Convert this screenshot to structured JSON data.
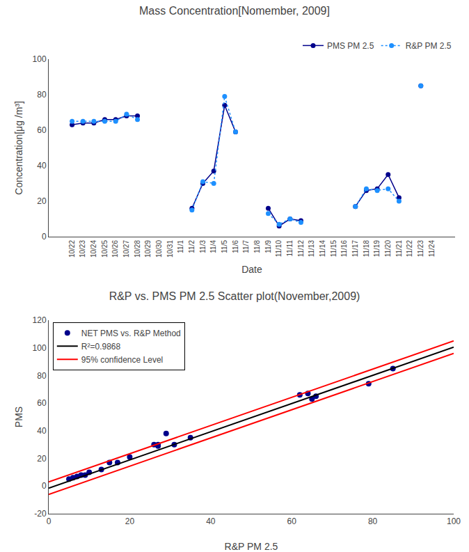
{
  "chart_data": [
    {
      "type": "line",
      "title": "Mass Concentration[Nomember, 2009]",
      "xlabel": "Date",
      "ylabel": "Concentration[μg /m³]",
      "categories": [
        "10/22",
        "10/23",
        "10/24",
        "10/25",
        "10/26",
        "10/27",
        "10/28",
        "10/29",
        "10/30",
        "10/31",
        "11/1",
        "11/2",
        "11/3",
        "11/4",
        "11/5",
        "11/6",
        "11/7",
        "11/8",
        "11/9",
        "11/10",
        "11/11",
        "11/12",
        "11/13",
        "11/14",
        "11/15",
        "11/16",
        "11/17",
        "11/18",
        "11/19",
        "11/20",
        "11/21",
        "11/22",
        "11/23",
        "11/24"
      ],
      "series": [
        {
          "name": "PMS PM 2.5",
          "color": "#00008B",
          "line_style": "solid",
          "marker": "circle",
          "values": [
            63,
            64,
            64,
            66,
            66,
            68,
            68,
            null,
            null,
            null,
            null,
            16,
            30,
            37,
            74,
            59,
            null,
            null,
            16,
            6,
            10,
            9,
            null,
            null,
            null,
            null,
            17,
            26,
            27,
            35,
            22,
            null,
            85,
            null
          ]
        },
        {
          "name": "R&P PM 2.5",
          "color": "#1E90FF",
          "line_style": "dotted",
          "marker": "circle",
          "values": [
            65,
            65,
            65,
            65,
            65,
            69,
            66,
            null,
            null,
            null,
            null,
            15,
            31,
            30,
            79,
            59,
            null,
            null,
            13,
            7,
            10,
            8,
            null,
            null,
            null,
            null,
            17,
            27,
            26,
            27,
            20,
            null,
            85,
            null
          ]
        }
      ],
      "ylim": [
        0,
        100
      ],
      "yticks": [
        0,
        20,
        40,
        60,
        80,
        100
      ],
      "grid": false,
      "legend": "upper right"
    },
    {
      "type": "scatter",
      "title": "R&P vs. PMS PM 2.5 Scatter plot(November,2009)",
      "xlabel": "R&P PM 2.5",
      "ylabel": "PMS",
      "series": [
        {
          "name": "NET PMS vs. R&P Method",
          "type": "scatter",
          "color": "#00008B",
          "marker": "circle",
          "x": [
            5,
            6,
            7,
            8,
            9,
            10,
            13,
            15,
            17,
            20,
            26,
            27,
            27,
            29,
            31,
            35,
            62,
            64,
            65,
            66,
            79,
            85
          ],
          "values": [
            5,
            6,
            7,
            8,
            8,
            10,
            12,
            17,
            17,
            21,
            30,
            30,
            29,
            38,
            30,
            35,
            66,
            67,
            63,
            65,
            74,
            85
          ]
        },
        {
          "name": "R²=0.9868",
          "type": "line",
          "color": "#000000",
          "line_style": "solid",
          "x": [
            0,
            100
          ],
          "values": [
            -1.5,
            100.5
          ]
        },
        {
          "name": "95% confidence Level",
          "type": "line",
          "color": "#FF0000",
          "line_style": "solid",
          "x": [
            0,
            100,
            null,
            0,
            100
          ],
          "values": [
            3,
            105,
            null,
            -6,
            96
          ]
        }
      ],
      "xlim": [
        0,
        100
      ],
      "xticks": [
        0,
        20,
        40,
        60,
        80,
        100
      ],
      "ylim": [
        -20,
        120
      ],
      "yticks": [
        -20,
        0,
        20,
        40,
        60,
        80,
        100,
        120
      ],
      "grid": false,
      "legend": "upper left"
    }
  ]
}
